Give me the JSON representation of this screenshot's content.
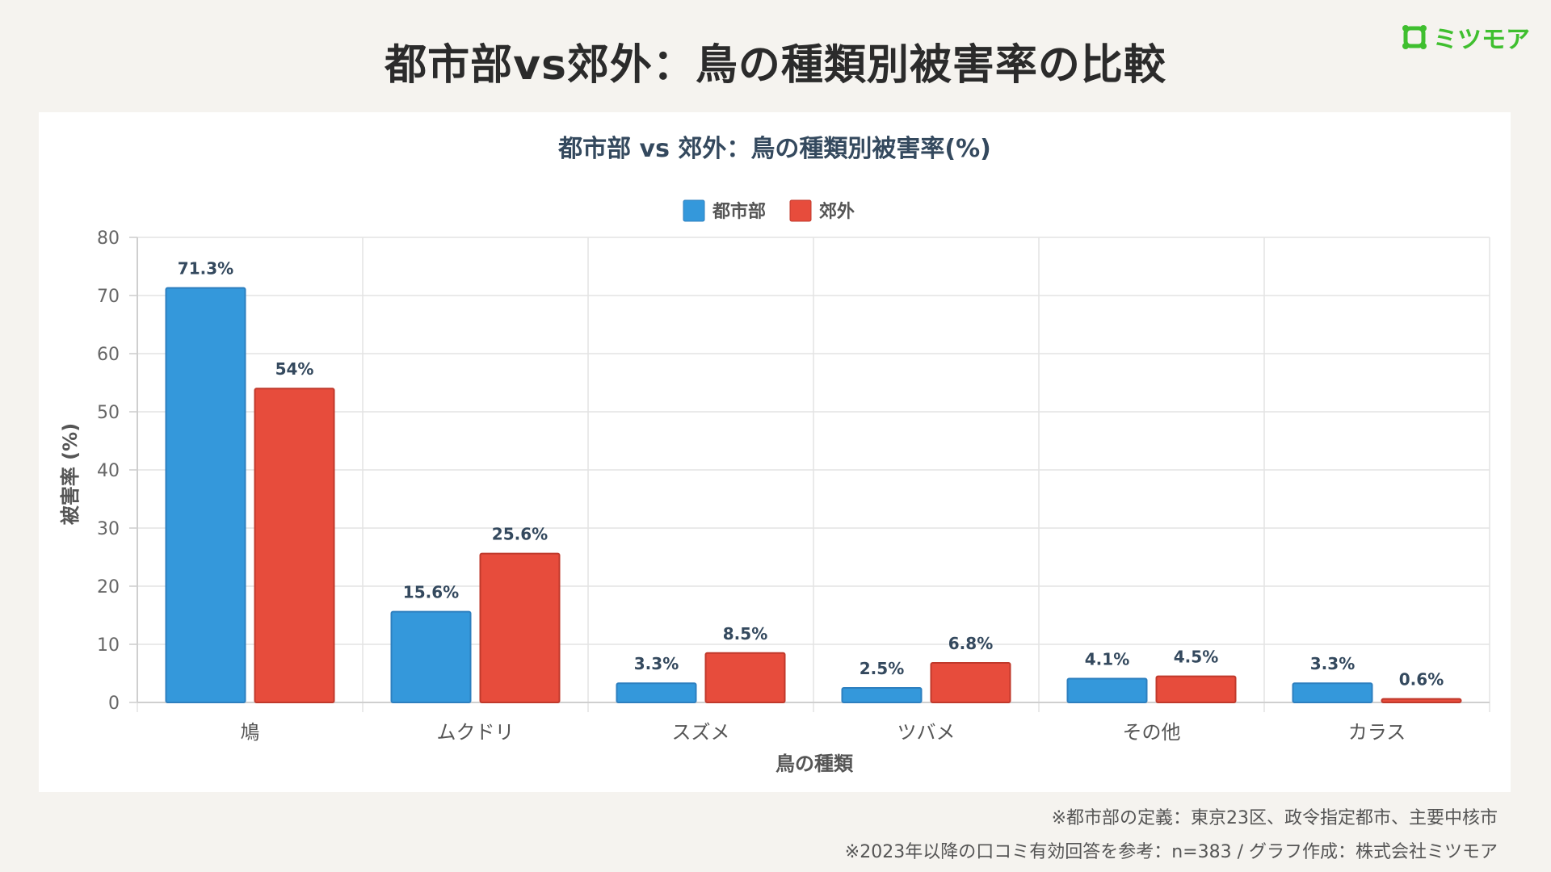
{
  "page": {
    "title": "都市部vs郊外：鳥の種類別被害率の比較",
    "logo_text": "ミツモア",
    "footnotes": [
      "※都市部の定義：東京23区、政令指定都市、主要中核市",
      "※2023年以降の口コミ有効回答を参考：n=383 / グラフ作成：株式会社ミツモア"
    ]
  },
  "colors": {
    "urban": "#3498db",
    "urban_border": "#2d7fbf",
    "suburban": "#e74c3c",
    "suburban_border": "#c0392b",
    "logo": "#3fbf2f"
  },
  "chart_data": {
    "type": "bar",
    "title": "都市部 vs 郊外：鳥の種類別被害率(%)",
    "xlabel": "鳥の種類",
    "ylabel": "被害率 (%)",
    "ylim": [
      0,
      80
    ],
    "yticks": [
      0,
      10,
      20,
      30,
      40,
      50,
      60,
      70,
      80
    ],
    "grid": true,
    "legend_position": "top",
    "categories": [
      "鳩",
      "ムクドリ",
      "スズメ",
      "ツバメ",
      "その他",
      "カラス"
    ],
    "series": [
      {
        "name": "都市部",
        "values": [
          71.3,
          15.6,
          3.3,
          2.5,
          4.1,
          3.3
        ],
        "labels": [
          "71.3%",
          "15.6%",
          "3.3%",
          "2.5%",
          "4.1%",
          "3.3%"
        ]
      },
      {
        "name": "郊外",
        "values": [
          54,
          25.6,
          8.5,
          6.8,
          4.5,
          0.6
        ],
        "labels": [
          "54%",
          "25.6%",
          "8.5%",
          "6.8%",
          "4.5%",
          "0.6%"
        ]
      }
    ]
  }
}
